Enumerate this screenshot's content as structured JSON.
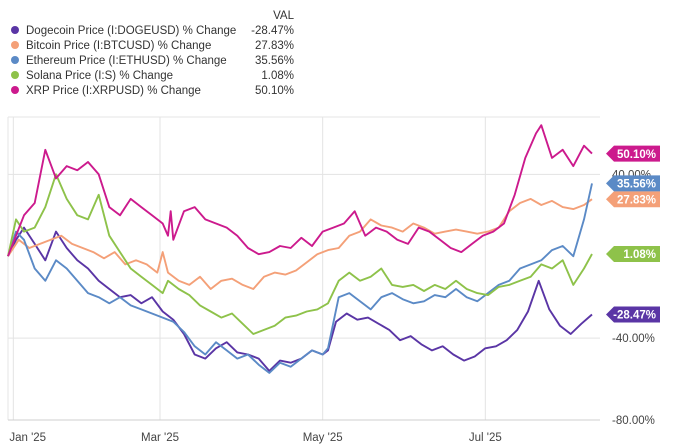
{
  "legend": {
    "value_header": "VAL"
  },
  "chart_data": {
    "type": "line",
    "legend_position": "top-left",
    "grid": true,
    "ylim": [
      -80,
      68
    ],
    "yticks": [
      {
        "value": 40,
        "label": "40.00%"
      },
      {
        "value": -40,
        "label": "-40.00%"
      },
      {
        "value": -80,
        "label": "-80.00%"
      }
    ],
    "xticks": [
      {
        "t": 2,
        "label": "Jan '25"
      },
      {
        "t": 57,
        "label": "Mar '25"
      },
      {
        "t": 118,
        "label": "May '25"
      },
      {
        "t": 179,
        "label": "Jul '25"
      }
    ],
    "x_range": [
      0,
      222
    ],
    "series": [
      {
        "name": "Dogecoin Price (I:DOGEUSD) % Change",
        "value_label": "-28.47%",
        "color": "#5a35a5",
        "points": [
          [
            0,
            0
          ],
          [
            3,
            8
          ],
          [
            6,
            14
          ],
          [
            10,
            6
          ],
          [
            14,
            -2
          ],
          [
            18,
            12
          ],
          [
            22,
            4
          ],
          [
            26,
            -2
          ],
          [
            30,
            -6
          ],
          [
            34,
            -12
          ],
          [
            38,
            -16
          ],
          [
            42,
            -20
          ],
          [
            46,
            -19
          ],
          [
            50,
            -23
          ],
          [
            54,
            -20
          ],
          [
            58,
            -27
          ],
          [
            62,
            -31
          ],
          [
            66,
            -38
          ],
          [
            70,
            -48
          ],
          [
            74,
            -50
          ],
          [
            78,
            -45
          ],
          [
            82,
            -42
          ],
          [
            86,
            -47
          ],
          [
            90,
            -48
          ],
          [
            94,
            -50
          ],
          [
            98,
            -56
          ],
          [
            102,
            -51
          ],
          [
            106,
            -52
          ],
          [
            110,
            -50
          ],
          [
            114,
            -46
          ],
          [
            118,
            -48
          ],
          [
            120,
            -46
          ],
          [
            123,
            -32
          ],
          [
            127,
            -28
          ],
          [
            131,
            -31
          ],
          [
            135,
            -30
          ],
          [
            139,
            -33
          ],
          [
            143,
            -36
          ],
          [
            147,
            -41
          ],
          [
            151,
            -39
          ],
          [
            155,
            -43
          ],
          [
            159,
            -46
          ],
          [
            163,
            -44
          ],
          [
            167,
            -48
          ],
          [
            171,
            -51
          ],
          [
            175,
            -49
          ],
          [
            179,
            -45
          ],
          [
            183,
            -44
          ],
          [
            187,
            -41
          ],
          [
            191,
            -36
          ],
          [
            195,
            -27
          ],
          [
            199,
            -12
          ],
          [
            203,
            -26
          ],
          [
            207,
            -34
          ],
          [
            211,
            -38
          ],
          [
            215,
            -33
          ],
          [
            219,
            -28.47
          ]
        ]
      },
      {
        "name": "Bitcoin Price (I:BTCUSD) % Change",
        "value_label": "27.83%",
        "color": "#f4a078",
        "points": [
          [
            0,
            0
          ],
          [
            4,
            8
          ],
          [
            8,
            4
          ],
          [
            12,
            6
          ],
          [
            16,
            8
          ],
          [
            20,
            10
          ],
          [
            24,
            6
          ],
          [
            28,
            4
          ],
          [
            32,
            2
          ],
          [
            36,
            -1
          ],
          [
            40,
            2
          ],
          [
            44,
            -4
          ],
          [
            48,
            -2
          ],
          [
            52,
            -4
          ],
          [
            56,
            -8
          ],
          [
            58,
            2
          ],
          [
            60,
            -8
          ],
          [
            64,
            -12
          ],
          [
            68,
            -14
          ],
          [
            72,
            -10
          ],
          [
            76,
            -16
          ],
          [
            80,
            -12
          ],
          [
            84,
            -11
          ],
          [
            88,
            -14
          ],
          [
            92,
            -16
          ],
          [
            96,
            -10
          ],
          [
            100,
            -8
          ],
          [
            104,
            -9
          ],
          [
            108,
            -7
          ],
          [
            112,
            -3
          ],
          [
            116,
            1
          ],
          [
            120,
            3
          ],
          [
            124,
            4
          ],
          [
            128,
            10
          ],
          [
            132,
            12
          ],
          [
            136,
            18
          ],
          [
            140,
            15
          ],
          [
            144,
            14
          ],
          [
            148,
            12
          ],
          [
            152,
            16
          ],
          [
            156,
            14
          ],
          [
            160,
            11
          ],
          [
            164,
            12
          ],
          [
            168,
            13
          ],
          [
            172,
            12
          ],
          [
            176,
            11
          ],
          [
            180,
            12
          ],
          [
            184,
            14
          ],
          [
            188,
            22
          ],
          [
            192,
            26
          ],
          [
            196,
            28
          ],
          [
            200,
            25
          ],
          [
            204,
            27
          ],
          [
            208,
            24
          ],
          [
            212,
            23
          ],
          [
            216,
            25
          ],
          [
            219,
            27.83
          ]
        ]
      },
      {
        "name": "Ethereum Price (I:ETHUSD) % Change",
        "value_label": "35.56%",
        "color": "#5b8ac6",
        "points": [
          [
            0,
            0
          ],
          [
            3,
            12
          ],
          [
            6,
            8
          ],
          [
            10,
            -6
          ],
          [
            14,
            -12
          ],
          [
            18,
            -2
          ],
          [
            22,
            -6
          ],
          [
            26,
            -12
          ],
          [
            30,
            -18
          ],
          [
            34,
            -20
          ],
          [
            38,
            -23
          ],
          [
            42,
            -20
          ],
          [
            46,
            -24
          ],
          [
            50,
            -26
          ],
          [
            54,
            -28
          ],
          [
            58,
            -30
          ],
          [
            62,
            -32
          ],
          [
            66,
            -37
          ],
          [
            70,
            -44
          ],
          [
            74,
            -48
          ],
          [
            78,
            -42
          ],
          [
            82,
            -46
          ],
          [
            86,
            -50
          ],
          [
            90,
            -48
          ],
          [
            94,
            -53
          ],
          [
            98,
            -57
          ],
          [
            102,
            -52
          ],
          [
            106,
            -54
          ],
          [
            110,
            -50
          ],
          [
            114,
            -46
          ],
          [
            118,
            -48
          ],
          [
            120,
            -45
          ],
          [
            124,
            -20
          ],
          [
            128,
            -18
          ],
          [
            132,
            -22
          ],
          [
            136,
            -26
          ],
          [
            140,
            -20
          ],
          [
            144,
            -18
          ],
          [
            148,
            -21
          ],
          [
            152,
            -23
          ],
          [
            156,
            -22
          ],
          [
            160,
            -19
          ],
          [
            164,
            -20
          ],
          [
            168,
            -16
          ],
          [
            172,
            -20
          ],
          [
            176,
            -22
          ],
          [
            180,
            -18
          ],
          [
            184,
            -14
          ],
          [
            188,
            -12
          ],
          [
            192,
            -6
          ],
          [
            196,
            -4
          ],
          [
            200,
            -2
          ],
          [
            204,
            3
          ],
          [
            208,
            5
          ],
          [
            212,
            0
          ],
          [
            216,
            18
          ],
          [
            219,
            35.56
          ]
        ]
      },
      {
        "name": "Solana Price (I:S) % Change",
        "value_label": "1.08%",
        "color": "#8ec24a",
        "points": [
          [
            0,
            0
          ],
          [
            3,
            18
          ],
          [
            6,
            12
          ],
          [
            10,
            14
          ],
          [
            14,
            24
          ],
          [
            18,
            40
          ],
          [
            22,
            28
          ],
          [
            26,
            20
          ],
          [
            30,
            18
          ],
          [
            34,
            30
          ],
          [
            38,
            10
          ],
          [
            42,
            2
          ],
          [
            46,
            -6
          ],
          [
            50,
            -10
          ],
          [
            54,
            -14
          ],
          [
            58,
            -18
          ],
          [
            60,
            -12
          ],
          [
            64,
            -16
          ],
          [
            68,
            -19
          ],
          [
            72,
            -24
          ],
          [
            76,
            -27
          ],
          [
            80,
            -30
          ],
          [
            84,
            -28
          ],
          [
            88,
            -33
          ],
          [
            92,
            -38
          ],
          [
            96,
            -36
          ],
          [
            100,
            -34
          ],
          [
            104,
            -30
          ],
          [
            108,
            -29
          ],
          [
            112,
            -27
          ],
          [
            116,
            -26
          ],
          [
            120,
            -23
          ],
          [
            124,
            -12
          ],
          [
            128,
            -8
          ],
          [
            132,
            -12
          ],
          [
            136,
            -10
          ],
          [
            140,
            -6
          ],
          [
            144,
            -14
          ],
          [
            148,
            -15
          ],
          [
            152,
            -14
          ],
          [
            156,
            -17
          ],
          [
            160,
            -14
          ],
          [
            164,
            -16
          ],
          [
            168,
            -12
          ],
          [
            172,
            -16
          ],
          [
            176,
            -18
          ],
          [
            180,
            -19
          ],
          [
            184,
            -15
          ],
          [
            188,
            -14
          ],
          [
            192,
            -12
          ],
          [
            196,
            -10
          ],
          [
            200,
            -4
          ],
          [
            204,
            -6
          ],
          [
            208,
            -2
          ],
          [
            212,
            -14
          ],
          [
            216,
            -6
          ],
          [
            219,
            1.08
          ]
        ]
      },
      {
        "name": "XRP Price (I:XRPUSD) % Change",
        "value_label": "50.10%",
        "color": "#cc1a8d",
        "points": [
          [
            0,
            0
          ],
          [
            3,
            10
          ],
          [
            6,
            20
          ],
          [
            10,
            26
          ],
          [
            14,
            52
          ],
          [
            18,
            38
          ],
          [
            22,
            44
          ],
          [
            26,
            42
          ],
          [
            30,
            46
          ],
          [
            34,
            40
          ],
          [
            38,
            24
          ],
          [
            42,
            20
          ],
          [
            46,
            28
          ],
          [
            50,
            24
          ],
          [
            54,
            20
          ],
          [
            58,
            16
          ],
          [
            60,
            10
          ],
          [
            61,
            22
          ],
          [
            62,
            8
          ],
          [
            66,
            22
          ],
          [
            70,
            24
          ],
          [
            74,
            18
          ],
          [
            78,
            16
          ],
          [
            82,
            14
          ],
          [
            86,
            10
          ],
          [
            90,
            4
          ],
          [
            94,
            1
          ],
          [
            98,
            2
          ],
          [
            102,
            5
          ],
          [
            106,
            4
          ],
          [
            110,
            9
          ],
          [
            114,
            5
          ],
          [
            118,
            12
          ],
          [
            122,
            14
          ],
          [
            126,
            16
          ],
          [
            130,
            22
          ],
          [
            134,
            10
          ],
          [
            138,
            14
          ],
          [
            142,
            12
          ],
          [
            146,
            8
          ],
          [
            150,
            6
          ],
          [
            154,
            14
          ],
          [
            158,
            12
          ],
          [
            162,
            8
          ],
          [
            166,
            4
          ],
          [
            170,
            2
          ],
          [
            174,
            6
          ],
          [
            178,
            10
          ],
          [
            182,
            12
          ],
          [
            186,
            16
          ],
          [
            190,
            30
          ],
          [
            194,
            48
          ],
          [
            198,
            60
          ],
          [
            200,
            64
          ],
          [
            204,
            48
          ],
          [
            208,
            52
          ],
          [
            212,
            44
          ],
          [
            216,
            54
          ],
          [
            219,
            50.1
          ]
        ]
      }
    ]
  }
}
